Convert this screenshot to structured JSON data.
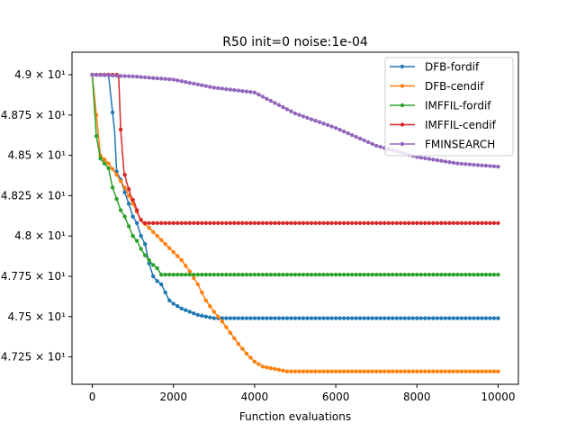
{
  "chart_data": {
    "type": "line",
    "title": "R50 init=0 noise:1e-04",
    "xlabel": "Function evaluations",
    "ylabel": "",
    "xlim": [
      -500,
      10500
    ],
    "ylim": [
      47.08,
      49.14
    ],
    "grid": false,
    "legend_position": "top-right",
    "x_ticks": [
      {
        "value": 0,
        "label": "0"
      },
      {
        "value": 2000,
        "label": "2000"
      },
      {
        "value": 4000,
        "label": "4000"
      },
      {
        "value": 6000,
        "label": "6000"
      },
      {
        "value": 8000,
        "label": "8000"
      },
      {
        "value": 10000,
        "label": "10000"
      }
    ],
    "y_ticks": [
      {
        "value": 47.25,
        "label": "4.725 × 10¹"
      },
      {
        "value": 47.5,
        "label": "4.75 × 10¹"
      },
      {
        "value": 47.75,
        "label": "4.775 × 10¹"
      },
      {
        "value": 48.0,
        "label": "4.8 × 10¹"
      },
      {
        "value": 48.25,
        "label": "4.825 × 10¹"
      },
      {
        "value": 48.5,
        "label": "4.85 × 10¹"
      },
      {
        "value": 48.75,
        "label": "4.875 × 10¹"
      },
      {
        "value": 49.0,
        "label": "4.9 × 10¹"
      }
    ],
    "series": [
      {
        "name": "DFB-fordif",
        "color": "#1f77b4",
        "points": [
          [
            0,
            49.0
          ],
          [
            400,
            49.0
          ],
          [
            550,
            48.65
          ],
          [
            600,
            48.4
          ],
          [
            700,
            48.35
          ],
          [
            800,
            48.27
          ],
          [
            900,
            48.2
          ],
          [
            1000,
            48.12
          ],
          [
            1100,
            48.08
          ],
          [
            1200,
            48.0
          ],
          [
            1300,
            47.95
          ],
          [
            1400,
            47.83
          ],
          [
            1500,
            47.75
          ],
          [
            1600,
            47.72
          ],
          [
            1700,
            47.7
          ],
          [
            1800,
            47.65
          ],
          [
            1900,
            47.6
          ],
          [
            2000,
            47.58
          ],
          [
            2200,
            47.55
          ],
          [
            2400,
            47.53
          ],
          [
            2600,
            47.51
          ],
          [
            2800,
            47.5
          ],
          [
            3000,
            47.49
          ],
          [
            10000,
            47.49
          ]
        ]
      },
      {
        "name": "DFB-cendif",
        "color": "#ff7f0e",
        "points": [
          [
            0,
            49.0
          ],
          [
            200,
            48.5
          ],
          [
            400,
            48.45
          ],
          [
            600,
            48.38
          ],
          [
            800,
            48.3
          ],
          [
            1000,
            48.2
          ],
          [
            1200,
            48.1
          ],
          [
            1400,
            48.05
          ],
          [
            1600,
            48.0
          ],
          [
            1800,
            47.95
          ],
          [
            2000,
            47.9
          ],
          [
            2200,
            47.85
          ],
          [
            2400,
            47.78
          ],
          [
            2600,
            47.7
          ],
          [
            2800,
            47.6
          ],
          [
            3000,
            47.53
          ],
          [
            3200,
            47.47
          ],
          [
            3400,
            47.4
          ],
          [
            3600,
            47.33
          ],
          [
            3800,
            47.27
          ],
          [
            4000,
            47.22
          ],
          [
            4200,
            47.19
          ],
          [
            4400,
            47.18
          ],
          [
            4600,
            47.17
          ],
          [
            4800,
            47.16
          ],
          [
            5000,
            47.16
          ],
          [
            10000,
            47.16
          ]
        ]
      },
      {
        "name": "IMFFIL-fordif",
        "color": "#2ca02c",
        "points": [
          [
            0,
            49.0
          ],
          [
            100,
            48.62
          ],
          [
            200,
            48.48
          ],
          [
            300,
            48.45
          ],
          [
            400,
            48.42
          ],
          [
            500,
            48.3
          ],
          [
            600,
            48.23
          ],
          [
            700,
            48.16
          ],
          [
            800,
            48.12
          ],
          [
            900,
            48.06
          ],
          [
            1000,
            48.0
          ],
          [
            1100,
            47.97
          ],
          [
            1200,
            47.92
          ],
          [
            1300,
            47.88
          ],
          [
            1400,
            47.85
          ],
          [
            1500,
            47.82
          ],
          [
            1600,
            47.8
          ],
          [
            1700,
            47.76
          ],
          [
            1800,
            47.76
          ],
          [
            10000,
            47.76
          ]
        ]
      },
      {
        "name": "IMFFIL-cendif",
        "color": "#d62728",
        "points": [
          [
            0,
            49.0
          ],
          [
            650,
            49.0
          ],
          [
            700,
            48.66
          ],
          [
            780,
            48.4
          ],
          [
            850,
            48.33
          ],
          [
            950,
            48.25
          ],
          [
            1050,
            48.2
          ],
          [
            1150,
            48.12
          ],
          [
            1250,
            48.08
          ],
          [
            10000,
            48.08
          ]
        ]
      },
      {
        "name": "FMINSEARCH",
        "color": "#9467bd",
        "points": [
          [
            0,
            49.0
          ],
          [
            1000,
            48.99
          ],
          [
            2000,
            48.97
          ],
          [
            3000,
            48.92
          ],
          [
            4000,
            48.89
          ],
          [
            5000,
            48.76
          ],
          [
            6000,
            48.67
          ],
          [
            7000,
            48.56
          ],
          [
            8000,
            48.49
          ],
          [
            9000,
            48.45
          ],
          [
            10000,
            48.43
          ]
        ]
      }
    ]
  }
}
